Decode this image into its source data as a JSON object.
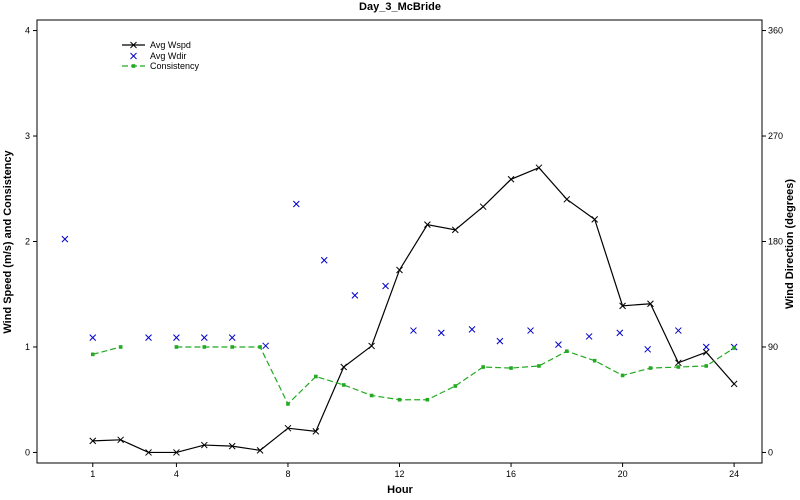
{
  "chart_data": {
    "type": "line",
    "title": "Day_3_McBride",
    "xlabel": "Hour",
    "ylabel_left": "Wind Speed (m/s) and Consistency",
    "ylabel_right": "Wind Direction (degrees)",
    "xlim": [
      -1,
      25
    ],
    "ylim_left": [
      -0.1,
      4.1
    ],
    "ylim_right": [
      -9,
      369
    ],
    "xticks": [
      1,
      4,
      8,
      12,
      16,
      20,
      24
    ],
    "yticks_left": [
      0,
      1,
      2,
      3,
      4
    ],
    "yticks_right": [
      0,
      90,
      180,
      270,
      360
    ],
    "legend_position": "top-left",
    "series": [
      {
        "name": "Avg Wspd",
        "style": "line-x",
        "color": "#000000",
        "axis": "left",
        "x": [
          1,
          2,
          3,
          4,
          5,
          6,
          7,
          8,
          9,
          10,
          11,
          12,
          13,
          14,
          15,
          16,
          17,
          18,
          19,
          20,
          21,
          22,
          23,
          24
        ],
        "y": [
          0.11,
          0.12,
          0.0,
          0.0,
          0.07,
          0.06,
          0.02,
          0.23,
          0.2,
          0.81,
          1.01,
          1.73,
          2.16,
          2.11,
          2.33,
          2.59,
          2.7,
          2.4,
          2.21,
          1.39,
          1.41,
          0.85,
          0.95,
          0.65
        ]
      },
      {
        "name": "Avg Wdir",
        "style": "markers-x",
        "color": "#0000cc",
        "axis": "right",
        "x": [
          0,
          1,
          3,
          4,
          5,
          6,
          7.2,
          8.3,
          9.3,
          10.4,
          11.5,
          12.5,
          13.5,
          14.6,
          15.6,
          16.7,
          17.7,
          18.8,
          19.9,
          20.9,
          22.0,
          23.0,
          24.0
        ],
        "y": [
          182,
          98,
          98,
          98,
          98,
          98,
          91,
          212,
          164,
          134,
          142,
          104,
          102,
          105,
          95,
          104,
          92,
          99,
          102,
          88,
          104,
          90,
          90
        ]
      },
      {
        "name": "Consistency",
        "style": "dashed-square",
        "color": "#22aa22",
        "axis": "left",
        "x": [
          1,
          2,
          4,
          5,
          6,
          7,
          8,
          9,
          10,
          11,
          12,
          13,
          14,
          15,
          16,
          17,
          18,
          19,
          20,
          21,
          22,
          23,
          24
        ],
        "y": [
          0.93,
          1.0,
          1.0,
          1.0,
          1.0,
          1.0,
          0.46,
          0.72,
          0.64,
          0.54,
          0.5,
          0.5,
          0.63,
          0.81,
          0.8,
          0.82,
          0.96,
          0.87,
          0.73,
          0.8,
          0.81,
          0.82,
          0.99
        ]
      }
    ]
  }
}
